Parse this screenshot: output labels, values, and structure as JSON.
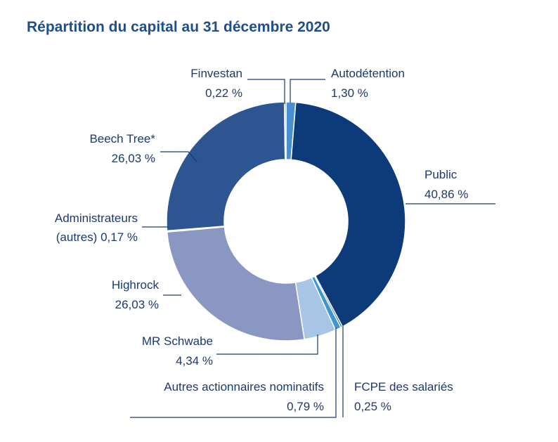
{
  "title": "Répartition du capital au 31 décembre 2020",
  "chart_data": {
    "type": "pie",
    "variant": "donut",
    "title": "Répartition du capital au 31 décembre 2020",
    "slices": [
      {
        "label": "Autodétention",
        "label_lines": [
          "Autodétention"
        ],
        "value": 1.3,
        "value_text": "1,30 %",
        "color": "#4a90d0"
      },
      {
        "label": "Public",
        "label_lines": [
          "Public"
        ],
        "value": 40.86,
        "value_text": "40,86 %",
        "color": "#0d3b7a"
      },
      {
        "label": "FCPE des salariés",
        "label_lines": [
          "FCPE des salariés"
        ],
        "value": 0.25,
        "value_text": "0,25 %",
        "color": "#1e66b8"
      },
      {
        "label": "Autres actionnaires nominatifs",
        "label_lines": [
          "Autres actionnaires nominatifs"
        ],
        "value": 0.79,
        "value_text": "0,79 %",
        "color": "#3b96d8"
      },
      {
        "label": "MR Schwabe",
        "label_lines": [
          "MR Schwabe"
        ],
        "value": 4.34,
        "value_text": "4,34 %",
        "color": "#a9c5e6"
      },
      {
        "label": "Highrock",
        "label_lines": [
          "Highrock"
        ],
        "value": 26.03,
        "value_text": "26,03 %",
        "color": "#8a97c2"
      },
      {
        "label": "Administrateurs (autres)",
        "label_lines": [
          "Administrateurs",
          "(autres)"
        ],
        "value": 0.17,
        "value_text": "0,17 %",
        "color": "#b9c3de"
      },
      {
        "label": "Beech Tree*",
        "label_lines": [
          "Beech Tree*"
        ],
        "value": 26.03,
        "value_text": "26,03 %",
        "color": "#2c5591"
      },
      {
        "label": "Finvestan",
        "label_lines": [
          "Finvestan"
        ],
        "value": 0.22,
        "value_text": "0,22 %",
        "color": "#6fa6dc"
      }
    ]
  }
}
